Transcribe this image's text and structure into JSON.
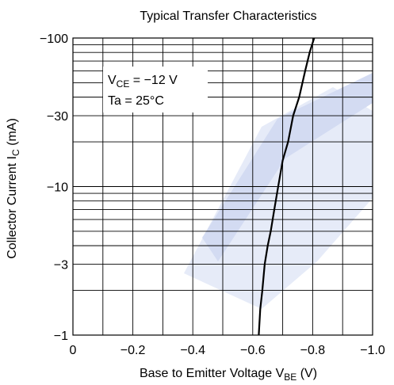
{
  "chart_data": {
    "type": "line",
    "title": "Typical Transfer Characteristics",
    "xlabel": {
      "main": "Base to Emitter Voltage  V",
      "sub": "BE",
      "unit": "  (V)"
    },
    "ylabel": {
      "main": "Collector Current  I",
      "sub": "C",
      "unit": "  (mA)"
    },
    "x_scale": "linear",
    "y_scale": "log",
    "xlim": [
      0,
      -1.0
    ],
    "ylim": [
      -1,
      -100
    ],
    "grid": true,
    "x_ticks": [
      {
        "value": 0,
        "label": "0"
      },
      {
        "value": -0.2,
        "label": "−0.2"
      },
      {
        "value": -0.4,
        "label": "−0.4"
      },
      {
        "value": -0.6,
        "label": "−0.6"
      },
      {
        "value": -0.8,
        "label": "−0.8"
      },
      {
        "value": -1.0,
        "label": "−1.0"
      }
    ],
    "y_ticks": [
      {
        "value": -1,
        "label": "−1"
      },
      {
        "value": -3,
        "label": "−3"
      },
      {
        "value": -10,
        "label": "−10"
      },
      {
        "value": -30,
        "label": "−30"
      },
      {
        "value": -100,
        "label": "−100"
      }
    ],
    "annotations": [
      {
        "main": "V",
        "sub": "CE",
        "rest": " = −12 V"
      },
      {
        "main": "Ta = 25°C"
      }
    ],
    "series": [
      {
        "x": [
          -0.62,
          -0.625,
          -0.632,
          -0.64,
          -0.65,
          -0.66,
          -0.672,
          -0.685,
          -0.7,
          -0.718,
          -0.735,
          -0.755,
          -0.775,
          -0.79,
          -0.805
        ],
        "y": [
          -1,
          -1.5,
          -2,
          -3,
          -4,
          -5,
          -7,
          -10,
          -15,
          -20,
          -30,
          -40,
          -60,
          -80,
          -100
        ]
      }
    ]
  }
}
